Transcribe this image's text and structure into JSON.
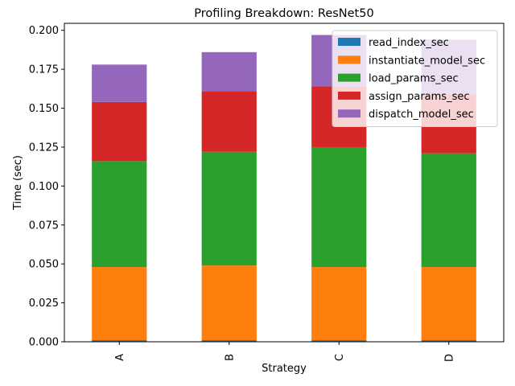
{
  "chart_data": {
    "type": "bar",
    "stacked": true,
    "title": "Profiling Breakdown: ResNet50",
    "xlabel": "Strategy",
    "ylabel": "Time (sec)",
    "categories": [
      "A",
      "B",
      "C",
      "D"
    ],
    "ylim": [
      0,
      0.2045
    ],
    "yticks": [
      0.0,
      0.025,
      0.05,
      0.075,
      0.1,
      0.125,
      0.15,
      0.175,
      0.2
    ],
    "ytick_labels": [
      "0.000",
      "0.025",
      "0.050",
      "0.075",
      "0.100",
      "0.125",
      "0.150",
      "0.175",
      "0.200"
    ],
    "grid": false,
    "legend_position": "top-right",
    "series": [
      {
        "name": "read_index_sec",
        "color": "#1f77b4",
        "values": [
          0.001,
          0.001,
          0.001,
          0.001
        ]
      },
      {
        "name": "instantiate_model_sec",
        "color": "#ff7f0e",
        "values": [
          0.047,
          0.048,
          0.047,
          0.047
        ]
      },
      {
        "name": "load_params_sec",
        "color": "#2ca02c",
        "values": [
          0.068,
          0.073,
          0.077,
          0.073
        ]
      },
      {
        "name": "assign_params_sec",
        "color": "#d62728",
        "values": [
          0.038,
          0.039,
          0.039,
          0.038
        ]
      },
      {
        "name": "dispatch_model_sec",
        "color": "#9467bd",
        "values": [
          0.024,
          0.025,
          0.033,
          0.035
        ]
      }
    ]
  }
}
